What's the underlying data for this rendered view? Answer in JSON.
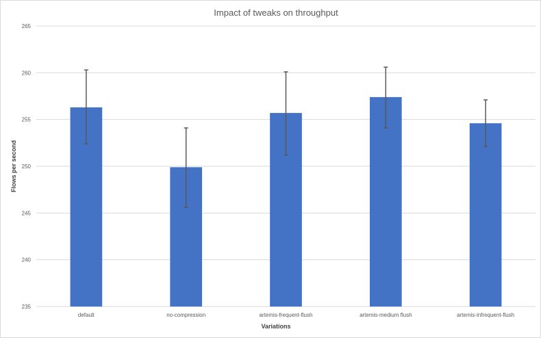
{
  "chart_data": {
    "type": "bar",
    "title": "Impact of tweaks on throughput",
    "xlabel": "Variations",
    "ylabel": "Flows per second",
    "categories": [
      "default",
      "no-compression",
      "artemis-frequent-flush",
      "artemis-medium flush",
      "artemis-infrequent-flush"
    ],
    "values": [
      256.3,
      249.9,
      255.7,
      257.4,
      254.6
    ],
    "error_low": [
      252.4,
      245.6,
      251.2,
      254.1,
      252.1
    ],
    "error_high": [
      260.3,
      254.1,
      260.1,
      260.6,
      257.1
    ],
    "ylim": [
      235,
      265
    ],
    "yticks": [
      235,
      240,
      245,
      250,
      255,
      260,
      265
    ],
    "ytick_labels": [
      "235",
      "240",
      "245",
      "250",
      "255",
      "260",
      "265"
    ],
    "grid": true,
    "legend": "none",
    "bar_color": "#4472C4",
    "error_color": "#595959",
    "grid_color": "#d9d9d9"
  }
}
